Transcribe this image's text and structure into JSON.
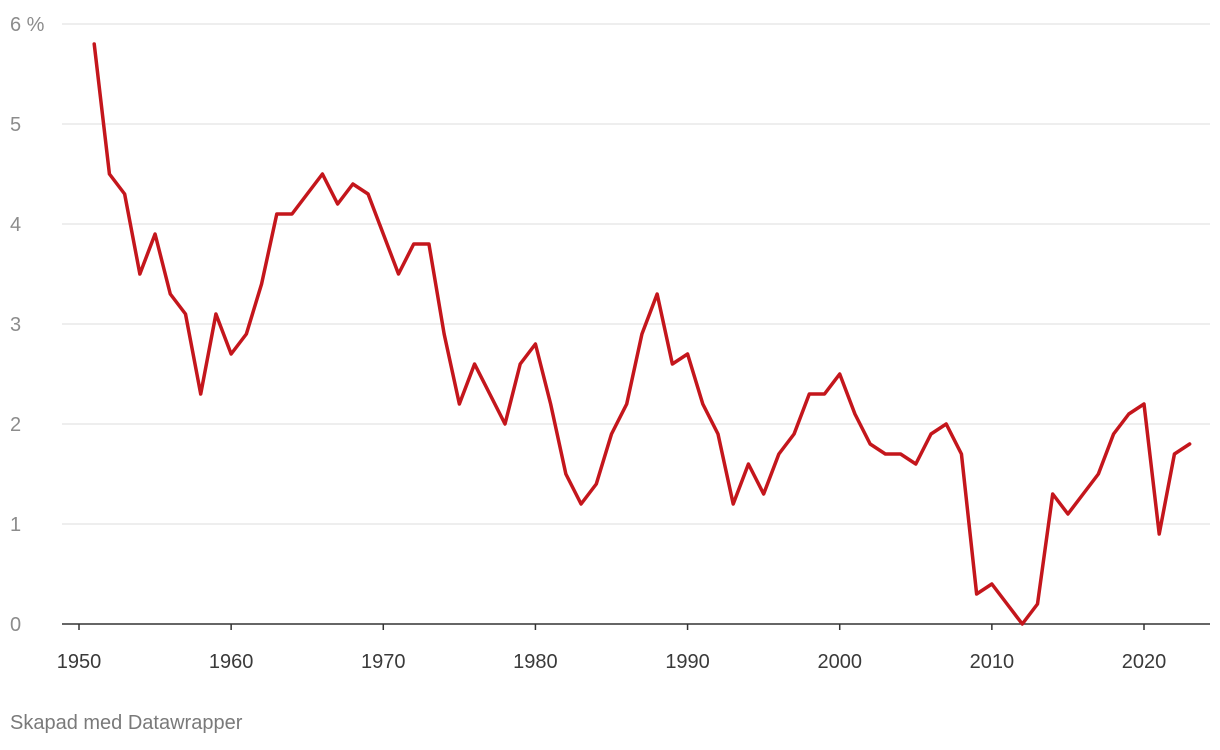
{
  "chart_data": {
    "type": "line",
    "y_unit": "%",
    "xlim": [
      1948,
      2025
    ],
    "ylim": [
      0,
      6
    ],
    "grid": true,
    "x_ticks": [
      1950,
      1960,
      1970,
      1980,
      1990,
      2000,
      2010,
      2020
    ],
    "y_ticks": [
      0,
      1,
      2,
      3,
      4,
      5,
      6
    ],
    "line_color": "#c4161c",
    "x": [
      1951,
      1952,
      1953,
      1954,
      1955,
      1956,
      1957,
      1958,
      1959,
      1960,
      1961,
      1962,
      1963,
      1964,
      1965,
      1966,
      1967,
      1968,
      1969,
      1970,
      1971,
      1972,
      1973,
      1974,
      1975,
      1976,
      1977,
      1978,
      1979,
      1980,
      1981,
      1982,
      1983,
      1984,
      1985,
      1986,
      1987,
      1988,
      1989,
      1990,
      1991,
      1992,
      1993,
      1994,
      1995,
      1996,
      1997,
      1998,
      1999,
      2000,
      2001,
      2002,
      2003,
      2004,
      2005,
      2006,
      2007,
      2008,
      2009,
      2010,
      2011,
      2012,
      2013,
      2014,
      2015,
      2016,
      2017,
      2018,
      2019,
      2020,
      2021,
      2022,
      2023
    ],
    "series": [
      {
        "values": [
          5.8,
          4.5,
          4.3,
          3.5,
          3.9,
          3.3,
          3.1,
          2.3,
          3.1,
          2.7,
          2.9,
          3.4,
          4.1,
          4.1,
          4.3,
          4.5,
          4.2,
          4.4,
          4.3,
          3.9,
          3.5,
          3.8,
          3.8,
          2.9,
          2.2,
          2.6,
          2.3,
          2.0,
          2.6,
          2.8,
          2.2,
          1.5,
          1.2,
          1.4,
          1.9,
          2.2,
          2.9,
          3.3,
          2.6,
          2.7,
          2.2,
          1.9,
          1.2,
          1.6,
          1.3,
          1.7,
          1.9,
          2.3,
          2.3,
          2.5,
          2.1,
          1.8,
          1.7,
          1.7,
          1.6,
          1.9,
          2.0,
          1.7,
          0.3,
          0.4,
          0.2,
          0.0,
          0.2,
          1.3,
          1.1,
          1.3,
          1.5,
          1.9,
          2.1,
          2.2,
          0.9,
          1.7,
          1.8
        ]
      }
    ]
  },
  "footer": {
    "credit": "Skapad med Datawrapper"
  }
}
